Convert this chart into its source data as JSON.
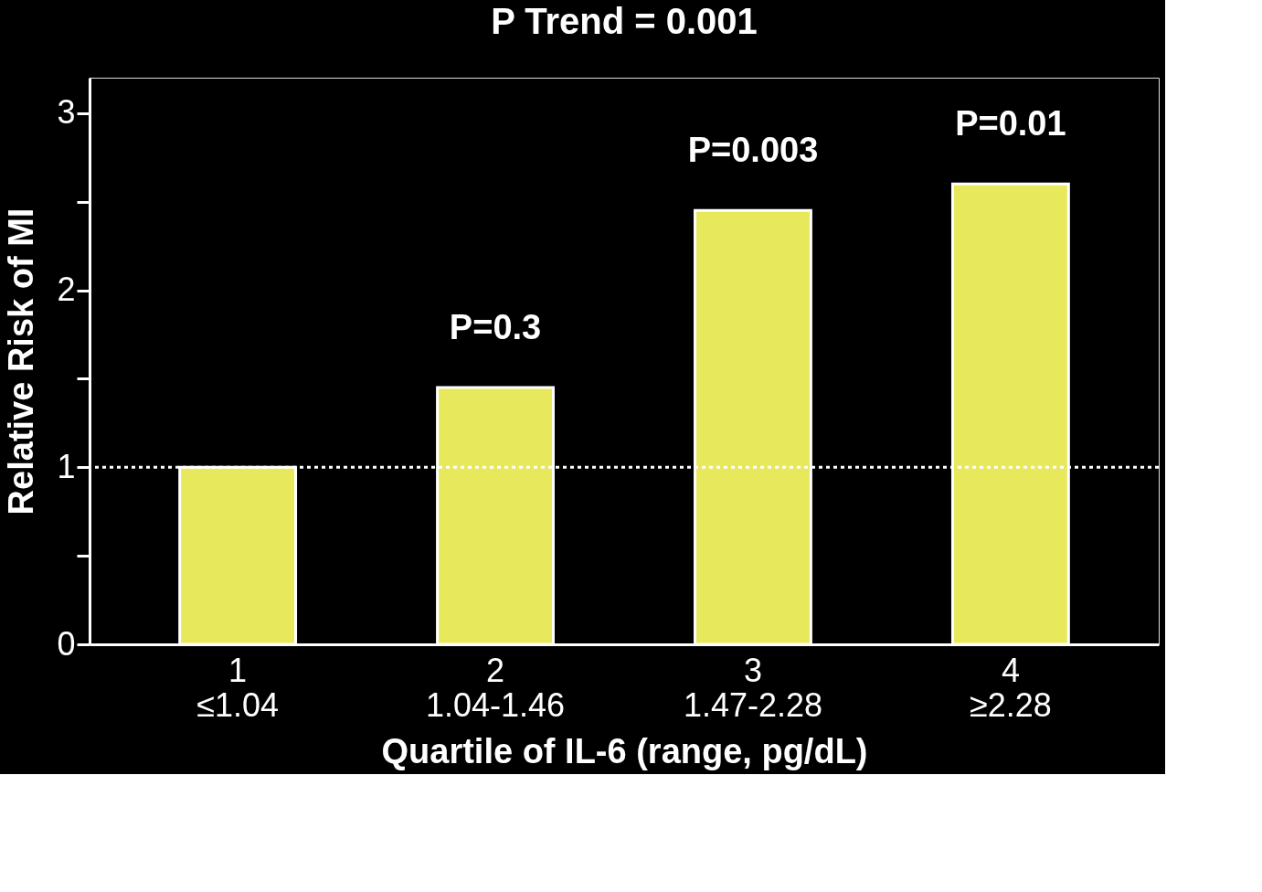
{
  "chart_data": {
    "type": "bar",
    "title": "P Trend = 0.001",
    "xlabel": "Quartile of IL-6 (range, pg/dL)",
    "ylabel": "Relative Risk of MI",
    "categories": [
      "1\n≤1.04",
      "2\n1.04-1.46",
      "3\n1.47-2.28",
      "4\n≥2.28"
    ],
    "values": [
      1.0,
      1.45,
      2.45,
      2.6
    ],
    "color": "#e8e85c",
    "ylim": [
      0,
      3.2
    ],
    "yticks": [
      0,
      {
        "value": 0.5,
        "label": null
      },
      1,
      {
        "value": 1.5,
        "label": null
      },
      2,
      {
        "value": 2.5,
        "label": null
      },
      3
    ],
    "ref_lines": [
      {
        "axis": "y",
        "value": 1,
        "color": "#ffffff",
        "line_style": "dotted"
      }
    ],
    "annotations": [
      "P=0.3",
      "P=0.003",
      "P=0.01"
    ]
  }
}
